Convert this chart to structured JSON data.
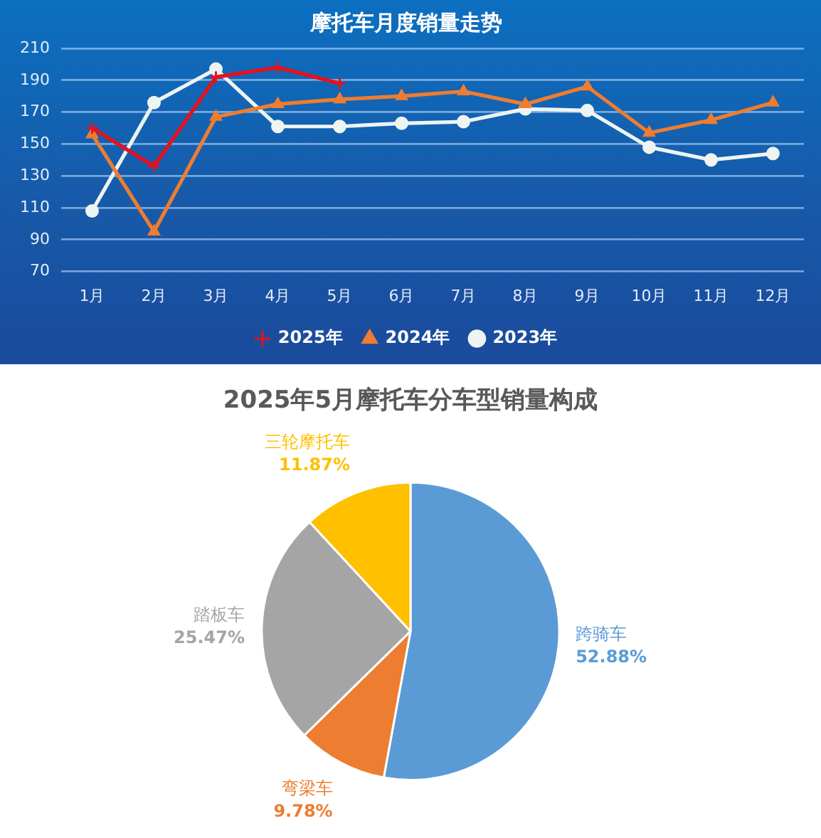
{
  "chart_data": [
    {
      "type": "line",
      "title": "摩托车月度销量走势",
      "categories": [
        "1月",
        "2月",
        "3月",
        "4月",
        "5月",
        "6月",
        "7月",
        "8月",
        "9月",
        "10月",
        "11月",
        "12月"
      ],
      "series": [
        {
          "name": "2025年",
          "color": "#e8101c",
          "marker": "cross",
          "values": [
            160,
            136,
            192,
            198,
            188,
            null,
            null,
            null,
            null,
            null,
            null,
            null
          ]
        },
        {
          "name": "2024年",
          "color": "#ed7d31",
          "marker": "triangle",
          "values": [
            156,
            95,
            167,
            175,
            178,
            180,
            183,
            175,
            186,
            157,
            165,
            176
          ]
        },
        {
          "name": "2023年",
          "color": "#eef4f2",
          "marker": "circle",
          "values": [
            108,
            176,
            197,
            161,
            161,
            163,
            164,
            172,
            171,
            148,
            140,
            144
          ]
        }
      ],
      "ylim": [
        70,
        210
      ],
      "yticks": [
        70,
        90,
        110,
        130,
        150,
        170,
        190,
        210
      ],
      "grid": "y",
      "legend": "bottom"
    },
    {
      "type": "pie",
      "title": "2025年5月摩托车分车型销量构成",
      "categories": [
        "跨骑车",
        "弯梁车",
        "踏板车",
        "三轮摩托车"
      ],
      "values": [
        52.88,
        9.78,
        25.47,
        11.87
      ],
      "colors": [
        "#5b9bd5",
        "#ed7d31",
        "#a5a5a5",
        "#ffc000"
      ],
      "value_labels": [
        "52.88%",
        "9.78%",
        "25.47%",
        "11.87%"
      ]
    }
  ]
}
